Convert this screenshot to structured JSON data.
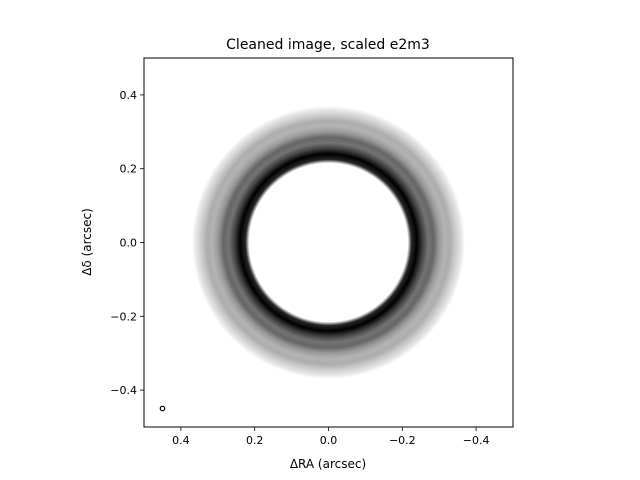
{
  "chart_data": {
    "type": "heatmap",
    "title": "Cleaned image, scaled e2m3",
    "xlabel": "ΔRA (arcsec)",
    "ylabel": "Δδ (arcsec)",
    "xlim": [
      0.5,
      -0.5
    ],
    "ylim": [
      -0.5,
      0.5
    ],
    "x_inverted": true,
    "x_ticks": [
      {
        "value": 0.4,
        "label": "0.4"
      },
      {
        "value": 0.2,
        "label": "0.2"
      },
      {
        "value": 0.0,
        "label": "0.0"
      },
      {
        "value": -0.2,
        "label": "−0.2"
      },
      {
        "value": -0.4,
        "label": "−0.4"
      }
    ],
    "y_ticks": [
      {
        "value": 0.4,
        "label": "0.4"
      },
      {
        "value": 0.2,
        "label": "0.2"
      },
      {
        "value": 0.0,
        "label": "0.0"
      },
      {
        "value": -0.2,
        "label": "−0.2"
      },
      {
        "value": -0.4,
        "label": "−0.4"
      }
    ],
    "colormap": "greys",
    "disk": {
      "center": [
        0.0,
        0.0
      ],
      "cavity_radius": 0.22,
      "peak_radius": 0.235,
      "outer_radius": 0.37,
      "radial_profile": [
        {
          "r": 0.215,
          "intensity": 0.0
        },
        {
          "r": 0.225,
          "intensity": 0.85
        },
        {
          "r": 0.24,
          "intensity": 1.0
        },
        {
          "r": 0.255,
          "intensity": 0.75
        },
        {
          "r": 0.27,
          "intensity": 0.55
        },
        {
          "r": 0.285,
          "intensity": 0.6
        },
        {
          "r": 0.3,
          "intensity": 0.4
        },
        {
          "r": 0.315,
          "intensity": 0.3
        },
        {
          "r": 0.33,
          "intensity": 0.32
        },
        {
          "r": 0.345,
          "intensity": 0.2
        },
        {
          "r": 0.36,
          "intensity": 0.1
        },
        {
          "r": 0.38,
          "intensity": 0.0
        }
      ]
    },
    "beam": {
      "center": [
        0.45,
        -0.45
      ],
      "radius": 0.006
    },
    "grid": false
  }
}
